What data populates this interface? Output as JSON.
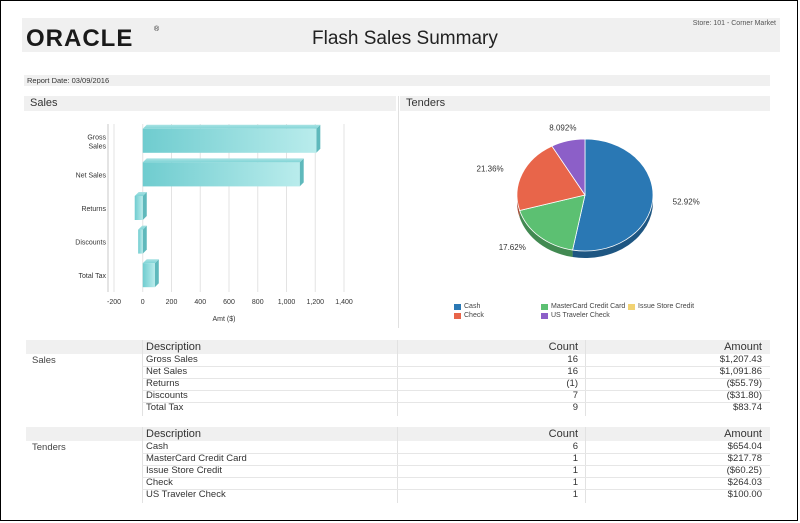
{
  "header": {
    "logo": "ORACLE",
    "logo_mark": "®",
    "title": "Flash Sales Summary",
    "store": "Store: 101 - Corner Market"
  },
  "report_date": "Report Date: 03/09/2016",
  "sales_panel": {
    "title": "Sales"
  },
  "tenders_panel": {
    "title": "Tenders"
  },
  "chart_data": [
    {
      "type": "bar",
      "orientation": "horizontal",
      "title": "Sales",
      "categories": [
        "Gross Sales",
        "Net Sales",
        "Returns",
        "Discounts",
        "Total Tax"
      ],
      "category_lines": [
        [
          "Gross",
          "Sales"
        ],
        [
          "Net Sales"
        ],
        [
          "Returns"
        ],
        [
          "Discounts"
        ],
        [
          "Total Tax"
        ]
      ],
      "values": [
        1207.43,
        1091.86,
        -55.79,
        -31.8,
        83.74
      ],
      "xlabel": "Amt ($)",
      "xlim": [
        -200,
        1400
      ],
      "xticks": [
        -200,
        0,
        200,
        400,
        600,
        800,
        1000,
        1200,
        1400
      ],
      "xtick_labels": [
        "-200",
        "0",
        "200",
        "400",
        "600",
        "800",
        "1,000",
        "1,200",
        "1,400"
      ],
      "grid": true,
      "bar_color": "#7fd4d6"
    },
    {
      "type": "pie",
      "title": "Tenders",
      "labels": [
        "Cash",
        "MasterCard Credit Card",
        "Issue Store Credit",
        "Check",
        "US Traveler Check"
      ],
      "values": [
        52.92,
        17.62,
        0,
        21.36,
        8.092
      ],
      "value_labels": [
        "52.92%",
        "17.62%",
        "",
        "21.36%",
        "8.092%"
      ],
      "colors": [
        "#2a78b4",
        "#5cc072",
        "#f2d373",
        "#e8654a",
        "#8c5fc8"
      ],
      "legend_position": "bottom"
    }
  ],
  "legend": {
    "cash": {
      "label": "Cash",
      "color": "#2a78b4"
    },
    "mastercard": {
      "label": "MasterCard Credit Card",
      "color": "#5cc072"
    },
    "issue_credit": {
      "label": "Issue Store Credit",
      "color": "#f2d373"
    },
    "check": {
      "label": "Check",
      "color": "#e8654a"
    },
    "traveler": {
      "label": "US Traveler Check",
      "color": "#8c5fc8"
    }
  },
  "sales_table": {
    "group": "Sales",
    "headers": {
      "description": "Description",
      "count": "Count",
      "amount": "Amount"
    },
    "rows": [
      {
        "description": "Gross Sales",
        "count": "16",
        "amount": "$1,207.43"
      },
      {
        "description": "Net Sales",
        "count": "16",
        "amount": "$1,091.86"
      },
      {
        "description": "Returns",
        "count": "(1)",
        "amount": "($55.79)"
      },
      {
        "description": "Discounts",
        "count": "7",
        "amount": "($31.80)"
      },
      {
        "description": "Total Tax",
        "count": "9",
        "amount": "$83.74"
      }
    ]
  },
  "tenders_table": {
    "group": "Tenders",
    "headers": {
      "description": "Description",
      "count": "Count",
      "amount": "Amount"
    },
    "rows": [
      {
        "description": "Cash",
        "count": "6",
        "amount": "$654.04"
      },
      {
        "description": "MasterCard Credit Card",
        "count": "1",
        "amount": "$217.78"
      },
      {
        "description": "Issue Store Credit",
        "count": "1",
        "amount": "($60.25)"
      },
      {
        "description": "Check",
        "count": "1",
        "amount": "$264.03"
      },
      {
        "description": "US Traveler Check",
        "count": "1",
        "amount": "$100.00"
      }
    ]
  }
}
